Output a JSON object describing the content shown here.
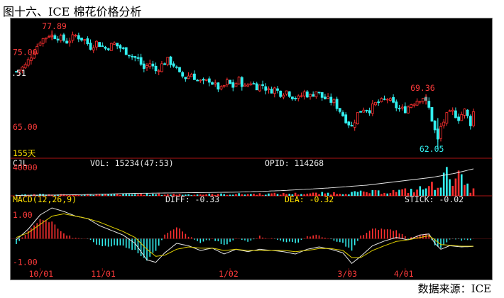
{
  "header": {
    "title": "图十六、ICE 棉花价格分析"
  },
  "footer": {
    "source": "数据来源：ICE"
  },
  "colors": {
    "up": "#ff3030",
    "down": "#33f0f0",
    "ma_line": "#e8e8e8",
    "dea_line": "#e0d000",
    "label_red": "#ff3b3b",
    "label_cyan": "#33f0f0",
    "label_yellow": "#ffe000",
    "label_white": "#e8e8e8",
    "background": "#000000",
    "grid": "#8a1010"
  },
  "chart_data": [
    {
      "type": "candlestick",
      "title": "",
      "y_tick_labels": [
        "75.00",
        "65.00"
      ],
      "y_tick_values": [
        75.0,
        65.0
      ],
      "y_edge_label": ".51",
      "period_label": "155天",
      "annotations": {
        "high_label": "77.89",
        "high_value": 77.89,
        "peak2_label": "69.36",
        "peak2_value": 69.36,
        "low_label": "62.05",
        "low_value": 62.05
      },
      "ylim": [
        61.5,
        79.3
      ],
      "x_tick_labels": [
        "10/01",
        "11/01",
        "1/02",
        "3/03",
        "4/01"
      ],
      "x_tick_index": [
        8,
        29,
        72,
        112,
        131
      ],
      "n_bars": 155,
      "close_path": [
        [
          0,
          72.4
        ],
        [
          3,
          73.2
        ],
        [
          5,
          74.5
        ],
        [
          8,
          76.5
        ],
        [
          11,
          77.3
        ],
        [
          14,
          77.0
        ],
        [
          17,
          76.4
        ],
        [
          20,
          77.2
        ],
        [
          23,
          76.6
        ],
        [
          25,
          75.7
        ],
        [
          27,
          76.3
        ],
        [
          30,
          75.5
        ],
        [
          33,
          76.1
        ],
        [
          36,
          75.3
        ],
        [
          39,
          74.5
        ],
        [
          41,
          74.0
        ],
        [
          43,
          72.8
        ],
        [
          45,
          73.5
        ],
        [
          47,
          72.5
        ],
        [
          49,
          73.3
        ],
        [
          51,
          73.9
        ],
        [
          53,
          73.3
        ],
        [
          55,
          72.0
        ],
        [
          57,
          71.6
        ],
        [
          59,
          72.1
        ],
        [
          61,
          71.2
        ],
        [
          63,
          70.9
        ],
        [
          65,
          71.3
        ],
        [
          67,
          70.5
        ],
        [
          69,
          70.0
        ],
        [
          71,
          71.0
        ],
        [
          73,
          70.4
        ],
        [
          75,
          71.3
        ],
        [
          77,
          70.3
        ],
        [
          79,
          71.0
        ],
        [
          81,
          70.4
        ],
        [
          83,
          70.6
        ],
        [
          85,
          69.8
        ],
        [
          87,
          70.1
        ],
        [
          89,
          69.5
        ],
        [
          91,
          69.8
        ],
        [
          93,
          69.1
        ],
        [
          95,
          68.8
        ],
        [
          97,
          69.6
        ],
        [
          99,
          69.1
        ],
        [
          101,
          69.8
        ],
        [
          103,
          69.0
        ],
        [
          105,
          68.6
        ],
        [
          107,
          68.3
        ],
        [
          109,
          67.2
        ],
        [
          111,
          66.0
        ],
        [
          113,
          65.0
        ],
        [
          115,
          66.8
        ],
        [
          117,
          67.5
        ],
        [
          119,
          67.3
        ],
        [
          121,
          68.1
        ],
        [
          123,
          68.4
        ],
        [
          125,
          68.8
        ],
        [
          127,
          68.0
        ],
        [
          129,
          67.4
        ],
        [
          131,
          67.3
        ],
        [
          133,
          68.1
        ],
        [
          135,
          68.6
        ],
        [
          137,
          69.0
        ],
        [
          139,
          67.5
        ],
        [
          141,
          64.5
        ],
        [
          142,
          63.2
        ],
        [
          143,
          65.0
        ],
        [
          145,
          66.5
        ],
        [
          147,
          67.0
        ],
        [
          149,
          66.2
        ],
        [
          151,
          67.2
        ],
        [
          153,
          65.5
        ],
        [
          154,
          67.0
        ]
      ]
    },
    {
      "type": "bar",
      "title": "CJL",
      "vol_label": "VOL: 15234(47:53)",
      "opid_label": "OPID: 114268",
      "y_tick_labels": [
        "40000"
      ],
      "y_tick_values": [
        40000
      ],
      "ylim": [
        0,
        44000
      ],
      "volume_path": [
        [
          0,
          2500
        ],
        [
          20,
          2200
        ],
        [
          40,
          2800
        ],
        [
          60,
          2500
        ],
        [
          80,
          3200
        ],
        [
          100,
          4000
        ],
        [
          110,
          5200
        ],
        [
          118,
          6200
        ],
        [
          124,
          7200
        ],
        [
          130,
          8500
        ],
        [
          135,
          10500
        ],
        [
          140,
          17000
        ],
        [
          143,
          26000
        ],
        [
          146,
          38000
        ],
        [
          148,
          41000
        ],
        [
          150,
          25000
        ],
        [
          152,
          14000
        ],
        [
          154,
          9000
        ]
      ],
      "oi_path": [
        [
          0,
          600
        ],
        [
          20,
          1500
        ],
        [
          40,
          3500
        ],
        [
          60,
          4500
        ],
        [
          75,
          5200
        ],
        [
          90,
          7500
        ],
        [
          105,
          11000
        ],
        [
          118,
          15000
        ],
        [
          130,
          21000
        ],
        [
          140,
          26000
        ],
        [
          148,
          32000
        ],
        [
          154,
          38000
        ]
      ]
    },
    {
      "type": "macd",
      "title": "MACD(12,26,9)",
      "diff_label": "DIFF: -0.33",
      "dea_label": "DEA: -0.32",
      "stick_label": "STICK: -0.02",
      "y_tick_labels": [
        "1.00",
        "-1.00"
      ],
      "y_tick_values": [
        1.0,
        -1.0
      ],
      "ylim": [
        -1.25,
        1.45
      ],
      "zero_line": 0,
      "diff_path": [
        [
          0,
          -0.05
        ],
        [
          4,
          0.4
        ],
        [
          8,
          1.0
        ],
        [
          12,
          1.3
        ],
        [
          16,
          1.15
        ],
        [
          20,
          0.95
        ],
        [
          24,
          0.85
        ],
        [
          28,
          0.55
        ],
        [
          32,
          0.35
        ],
        [
          36,
          0.15
        ],
        [
          40,
          -0.2
        ],
        [
          44,
          -0.9
        ],
        [
          47,
          -1.0
        ],
        [
          50,
          -0.6
        ],
        [
          54,
          -0.2
        ],
        [
          58,
          -0.3
        ],
        [
          62,
          -0.5
        ],
        [
          66,
          -0.4
        ],
        [
          70,
          -0.65
        ],
        [
          74,
          -0.45
        ],
        [
          78,
          -0.55
        ],
        [
          82,
          -0.45
        ],
        [
          86,
          -0.5
        ],
        [
          90,
          -0.55
        ],
        [
          94,
          -0.65
        ],
        [
          98,
          -0.45
        ],
        [
          102,
          -0.35
        ],
        [
          106,
          -0.45
        ],
        [
          110,
          -0.6
        ],
        [
          113,
          -1.05
        ],
        [
          116,
          -0.75
        ],
        [
          120,
          -0.3
        ],
        [
          124,
          -0.1
        ],
        [
          128,
          0.05
        ],
        [
          132,
          -0.05
        ],
        [
          136,
          0.15
        ],
        [
          139,
          0.2
        ],
        [
          141,
          -0.2
        ],
        [
          143,
          -0.45
        ],
        [
          146,
          -0.3
        ],
        [
          150,
          -0.35
        ],
        [
          154,
          -0.33
        ]
      ],
      "dea_path": [
        [
          0,
          0.05
        ],
        [
          4,
          0.25
        ],
        [
          8,
          0.6
        ],
        [
          12,
          0.95
        ],
        [
          16,
          1.05
        ],
        [
          20,
          0.95
        ],
        [
          24,
          0.85
        ],
        [
          28,
          0.7
        ],
        [
          32,
          0.5
        ],
        [
          36,
          0.3
        ],
        [
          40,
          0.05
        ],
        [
          44,
          -0.45
        ],
        [
          47,
          -0.75
        ],
        [
          50,
          -0.7
        ],
        [
          54,
          -0.45
        ],
        [
          58,
          -0.35
        ],
        [
          62,
          -0.4
        ],
        [
          66,
          -0.4
        ],
        [
          70,
          -0.5
        ],
        [
          74,
          -0.45
        ],
        [
          78,
          -0.5
        ],
        [
          82,
          -0.5
        ],
        [
          86,
          -0.5
        ],
        [
          90,
          -0.5
        ],
        [
          94,
          -0.55
        ],
        [
          98,
          -0.5
        ],
        [
          102,
          -0.42
        ],
        [
          106,
          -0.42
        ],
        [
          110,
          -0.5
        ],
        [
          113,
          -0.8
        ],
        [
          116,
          -0.8
        ],
        [
          120,
          -0.5
        ],
        [
          124,
          -0.3
        ],
        [
          128,
          -0.12
        ],
        [
          132,
          -0.05
        ],
        [
          136,
          0.05
        ],
        [
          139,
          0.12
        ],
        [
          141,
          -0.05
        ],
        [
          143,
          -0.25
        ],
        [
          146,
          -0.28
        ],
        [
          150,
          -0.32
        ],
        [
          154,
          -0.32
        ]
      ]
    }
  ]
}
